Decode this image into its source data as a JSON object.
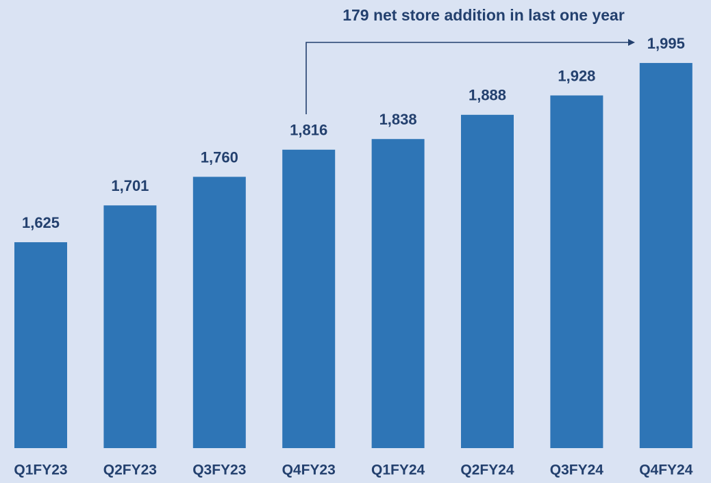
{
  "chart_data": {
    "type": "bar",
    "annotation": "179 net store addition in last one year",
    "categories": [
      "Q1FY23",
      "Q2FY23",
      "Q3FY23",
      "Q4FY23",
      "Q1FY24",
      "Q2FY24",
      "Q3FY24",
      "Q4FY24"
    ],
    "values": [
      1625,
      1701,
      1760,
      1816,
      1838,
      1888,
      1928,
      1995
    ],
    "value_labels": [
      "1,625",
      "1,701",
      "1,760",
      "1,816",
      "1,838",
      "1,888",
      "1,928",
      "1,995"
    ],
    "color": "#2e75b6",
    "ylim": [
      1200,
      2125
    ]
  }
}
